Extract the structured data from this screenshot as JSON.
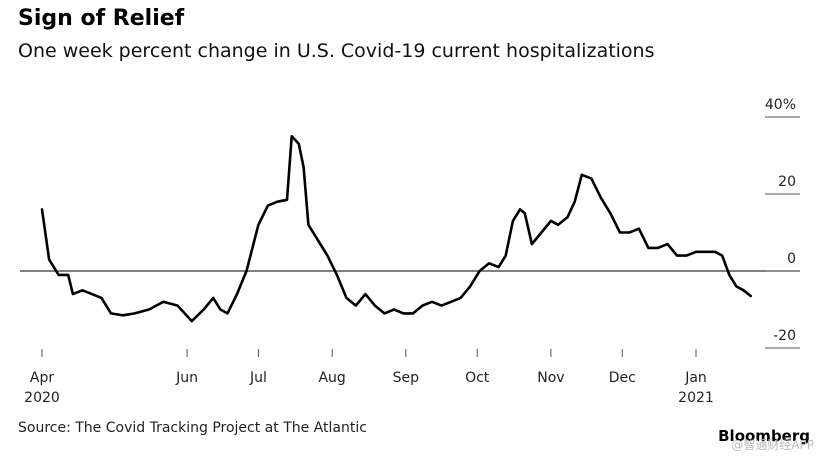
{
  "chart_data": {
    "type": "line",
    "title": "Sign of Relief",
    "subtitle": "One week percent change in U.S. Covid-19 current hospitalizations",
    "xlabel": "",
    "ylabel": "",
    "ylim": [
      -20,
      40
    ],
    "yticks": [
      {
        "value": 40,
        "label": "40%"
      },
      {
        "value": 20,
        "label": "20"
      },
      {
        "value": 0,
        "label": "0"
      },
      {
        "value": -20,
        "label": "-20"
      }
    ],
    "xticks": [
      {
        "date": "2020-04-01",
        "label": "Apr",
        "year": "2020"
      },
      {
        "date": "2020-06-01",
        "label": "Jun",
        "year": ""
      },
      {
        "date": "2020-07-01",
        "label": "Jul",
        "year": ""
      },
      {
        "date": "2020-08-01",
        "label": "Aug",
        "year": ""
      },
      {
        "date": "2020-09-01",
        "label": "Sep",
        "year": ""
      },
      {
        "date": "2020-10-01",
        "label": "Oct",
        "year": ""
      },
      {
        "date": "2020-11-01",
        "label": "Nov",
        "year": ""
      },
      {
        "date": "2020-12-01",
        "label": "Dec",
        "year": ""
      },
      {
        "date": "2021-01-01",
        "label": "Jan",
        "year": "2021"
      }
    ],
    "series": [
      {
        "values": [
          {
            "date": "2020-04-01",
            "value": 16
          },
          {
            "date": "2020-04-04",
            "value": 3
          },
          {
            "date": "2020-04-08",
            "value": -1
          },
          {
            "date": "2020-04-12",
            "value": -1
          },
          {
            "date": "2020-04-14",
            "value": -6
          },
          {
            "date": "2020-04-18",
            "value": -5
          },
          {
            "date": "2020-04-22",
            "value": -6
          },
          {
            "date": "2020-04-26",
            "value": -7
          },
          {
            "date": "2020-04-30",
            "value": -11
          },
          {
            "date": "2020-05-05",
            "value": -11.5
          },
          {
            "date": "2020-05-10",
            "value": -11
          },
          {
            "date": "2020-05-16",
            "value": -10
          },
          {
            "date": "2020-05-22",
            "value": -8
          },
          {
            "date": "2020-05-28",
            "value": -9
          },
          {
            "date": "2020-06-03",
            "value": -13
          },
          {
            "date": "2020-06-08",
            "value": -10
          },
          {
            "date": "2020-06-12",
            "value": -7
          },
          {
            "date": "2020-06-15",
            "value": -10
          },
          {
            "date": "2020-06-18",
            "value": -11
          },
          {
            "date": "2020-06-22",
            "value": -6
          },
          {
            "date": "2020-06-26",
            "value": 0
          },
          {
            "date": "2020-07-01",
            "value": 12
          },
          {
            "date": "2020-07-05",
            "value": 17
          },
          {
            "date": "2020-07-09",
            "value": 18
          },
          {
            "date": "2020-07-13",
            "value": 18.5
          },
          {
            "date": "2020-07-15",
            "value": 35
          },
          {
            "date": "2020-07-18",
            "value": 33
          },
          {
            "date": "2020-07-20",
            "value": 27
          },
          {
            "date": "2020-07-22",
            "value": 12
          },
          {
            "date": "2020-07-26",
            "value": 8
          },
          {
            "date": "2020-07-30",
            "value": 4
          },
          {
            "date": "2020-08-03",
            "value": -1
          },
          {
            "date": "2020-08-07",
            "value": -7
          },
          {
            "date": "2020-08-11",
            "value": -9
          },
          {
            "date": "2020-08-15",
            "value": -6
          },
          {
            "date": "2020-08-19",
            "value": -9
          },
          {
            "date": "2020-08-23",
            "value": -11
          },
          {
            "date": "2020-08-27",
            "value": -10
          },
          {
            "date": "2020-08-31",
            "value": -11
          },
          {
            "date": "2020-09-04",
            "value": -11
          },
          {
            "date": "2020-09-08",
            "value": -9
          },
          {
            "date": "2020-09-12",
            "value": -8
          },
          {
            "date": "2020-09-16",
            "value": -9
          },
          {
            "date": "2020-09-20",
            "value": -8
          },
          {
            "date": "2020-09-24",
            "value": -7
          },
          {
            "date": "2020-09-28",
            "value": -4
          },
          {
            "date": "2020-10-02",
            "value": 0
          },
          {
            "date": "2020-10-06",
            "value": 2
          },
          {
            "date": "2020-10-10",
            "value": 1
          },
          {
            "date": "2020-10-13",
            "value": 4
          },
          {
            "date": "2020-10-16",
            "value": 13
          },
          {
            "date": "2020-10-19",
            "value": 16
          },
          {
            "date": "2020-10-21",
            "value": 15
          },
          {
            "date": "2020-10-24",
            "value": 7
          },
          {
            "date": "2020-10-28",
            "value": 10
          },
          {
            "date": "2020-11-01",
            "value": 13
          },
          {
            "date": "2020-11-04",
            "value": 12
          },
          {
            "date": "2020-11-08",
            "value": 14
          },
          {
            "date": "2020-11-11",
            "value": 18
          },
          {
            "date": "2020-11-14",
            "value": 25
          },
          {
            "date": "2020-11-18",
            "value": 24
          },
          {
            "date": "2020-11-22",
            "value": 19
          },
          {
            "date": "2020-11-26",
            "value": 15
          },
          {
            "date": "2020-11-30",
            "value": 10
          },
          {
            "date": "2020-12-04",
            "value": 10
          },
          {
            "date": "2020-12-08",
            "value": 11
          },
          {
            "date": "2020-12-12",
            "value": 6
          },
          {
            "date": "2020-12-16",
            "value": 6
          },
          {
            "date": "2020-12-20",
            "value": 7
          },
          {
            "date": "2020-12-24",
            "value": 4
          },
          {
            "date": "2020-12-28",
            "value": 4
          },
          {
            "date": "2021-01-01",
            "value": 5
          },
          {
            "date": "2021-01-05",
            "value": 5
          },
          {
            "date": "2021-01-09",
            "value": 5
          },
          {
            "date": "2021-01-12",
            "value": 4
          },
          {
            "date": "2021-01-15",
            "value": -1
          },
          {
            "date": "2021-01-18",
            "value": -4
          },
          {
            "date": "2021-01-21",
            "value": -5
          },
          {
            "date": "2021-01-24",
            "value": -6.5
          }
        ]
      }
    ],
    "grid": false,
    "zero_line": true,
    "colors": {
      "line": "#000000",
      "zero_line": "#333333",
      "tick_line": "#555555"
    }
  },
  "footer": {
    "source": "Source: The Covid Tracking Project at The Atlantic",
    "brand": "Bloomberg",
    "watermark": "@智通财经APP"
  }
}
